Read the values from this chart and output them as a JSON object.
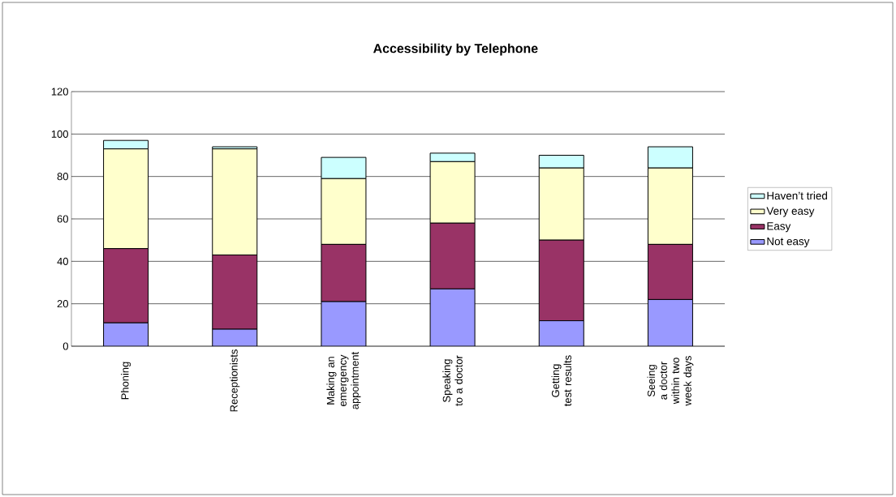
{
  "chart_data": {
    "type": "bar",
    "title": "Accessibility by Telephone",
    "stacked": true,
    "categories": [
      "Phoning",
      "Receptionists",
      "Making an emergency appointment",
      "Speaking to a doctor",
      "Getting test results",
      "Seeing a doctor within two week days"
    ],
    "series": [
      {
        "name": "Not easy",
        "color": "#9999ff",
        "values": [
          11,
          8,
          21,
          27,
          12,
          22
        ]
      },
      {
        "name": "Easy",
        "color": "#993366",
        "values": [
          35,
          35,
          27,
          31,
          38,
          26
        ]
      },
      {
        "name": "Very easy",
        "color": "#ffffcc",
        "values": [
          47,
          50,
          31,
          29,
          34,
          36
        ]
      },
      {
        "name": "Haven’t tried",
        "color": "#ccffff",
        "values": [
          4,
          1,
          10,
          4,
          6,
          10
        ]
      }
    ],
    "ylim": [
      0,
      120
    ],
    "yticks": [
      0,
      20,
      40,
      60,
      80,
      100,
      120
    ],
    "grid": "y",
    "legend": "right"
  }
}
